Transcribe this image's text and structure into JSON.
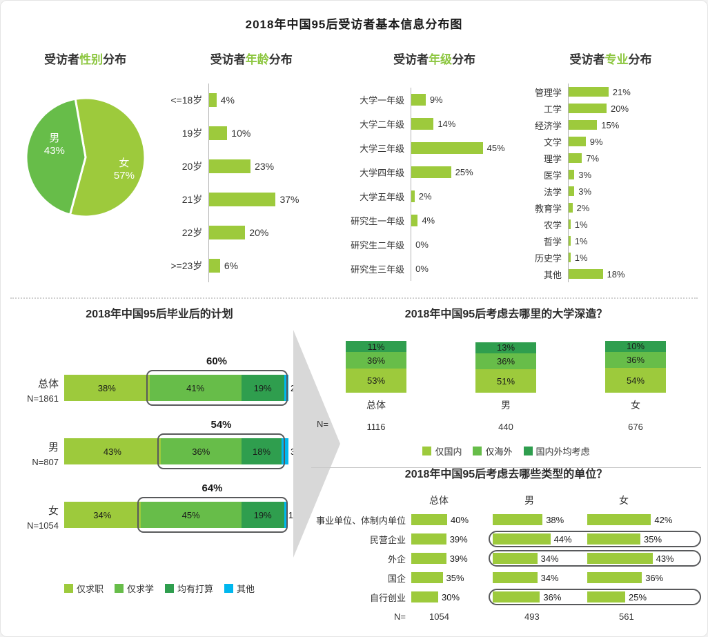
{
  "page_title": "2018年中国95后受访者基本信息分布图",
  "colors": {
    "light_green": "#9dca3c",
    "mid_green": "#67bd49",
    "dark_green": "#2f9e4e",
    "cyan": "#00b7ee",
    "highlight_green": "#8cc63f",
    "box_outline": "#58595b",
    "arrow_gray": "#d8d8d8"
  },
  "chart_data": [
    {
      "id": "gender",
      "type": "pie",
      "title": {
        "prefix": "受访者",
        "highlight": "性别",
        "suffix": "分布"
      },
      "slices": [
        {
          "label": "女",
          "value": 57,
          "color": "light_green"
        },
        {
          "label": "男",
          "value": 43,
          "color": "mid_green"
        }
      ]
    },
    {
      "id": "age",
      "type": "bar",
      "title": {
        "prefix": "受访者",
        "highlight": "年龄",
        "suffix": "分布"
      },
      "categories": [
        "<=18岁",
        "19岁",
        "20岁",
        "21岁",
        "22岁",
        ">=23岁"
      ],
      "values": [
        4,
        10,
        23,
        37,
        20,
        6
      ],
      "unit": "%"
    },
    {
      "id": "grade",
      "type": "bar",
      "title": {
        "prefix": "受访者",
        "highlight": "年级",
        "suffix": "分布"
      },
      "categories": [
        "大学一年级",
        "大学二年级",
        "大学三年级",
        "大学四年级",
        "大学五年级",
        "研究生一年级",
        "研究生二年级",
        "研究生三年级"
      ],
      "values": [
        9,
        14,
        45,
        25,
        2,
        4,
        0,
        0
      ],
      "unit": "%"
    },
    {
      "id": "major",
      "type": "bar",
      "title": {
        "prefix": "受访者",
        "highlight": "专业",
        "suffix": "分布"
      },
      "categories": [
        "管理学",
        "工学",
        "经济学",
        "文学",
        "理学",
        "医学",
        "法学",
        "教育学",
        "农学",
        "哲学",
        "历史学",
        "其他"
      ],
      "values": [
        21,
        20,
        15,
        9,
        7,
        3,
        3,
        2,
        1,
        1,
        1,
        18
      ],
      "unit": "%"
    },
    {
      "id": "plan",
      "type": "stacked-bar-horizontal",
      "title": "2018年中国95后毕业后的计划",
      "series": [
        "仅求职",
        "仅求学",
        "均有打算",
        "其他"
      ],
      "series_colors": [
        "light_green",
        "mid_green",
        "dark_green",
        "cyan"
      ],
      "rows": [
        {
          "label": "总体",
          "n": "N=1861",
          "values": [
            38,
            41,
            19,
            2
          ],
          "bracket_label": "60%"
        },
        {
          "label": "男",
          "n": "N=807",
          "values": [
            43,
            36,
            18,
            3
          ],
          "bracket_label": "54%"
        },
        {
          "label": "女",
          "n": "N=1054",
          "values": [
            34,
            45,
            19,
            1
          ],
          "bracket_label": "64%"
        }
      ]
    },
    {
      "id": "study-destination",
      "type": "stacked-bar-vertical",
      "title": "2018年中国95后考虑去哪里的大学深造？",
      "series": [
        "仅国内",
        "仅海外",
        "国内外均考虑"
      ],
      "series_colors": [
        "light_green",
        "mid_green",
        "dark_green"
      ],
      "n_label": "N=",
      "columns": [
        {
          "label": "总体",
          "n": "1116",
          "values": [
            53,
            36,
            11
          ]
        },
        {
          "label": "男",
          "n": "440",
          "values": [
            51,
            36,
            13
          ]
        },
        {
          "label": "女",
          "n": "676",
          "values": [
            54,
            36,
            10
          ]
        }
      ]
    },
    {
      "id": "employer-type",
      "type": "grouped-bar-horizontal",
      "title": "2018年中国95后考虑去哪些类型的单位？",
      "group_headers": [
        "总体",
        "男",
        "女"
      ],
      "n_label": "N=",
      "n_values": [
        "1054",
        "493",
        "561"
      ],
      "rows": [
        {
          "label": "事业单位、体制内单位",
          "values": [
            40,
            38,
            42
          ],
          "boxed": false
        },
        {
          "label": "民营企业",
          "values": [
            39,
            44,
            35
          ],
          "boxed": true
        },
        {
          "label": "外企",
          "values": [
            39,
            34,
            43
          ],
          "boxed": true
        },
        {
          "label": "国企",
          "values": [
            35,
            34,
            36
          ],
          "boxed": false
        },
        {
          "label": "自行创业",
          "values": [
            30,
            36,
            25
          ],
          "boxed": true
        }
      ]
    }
  ]
}
